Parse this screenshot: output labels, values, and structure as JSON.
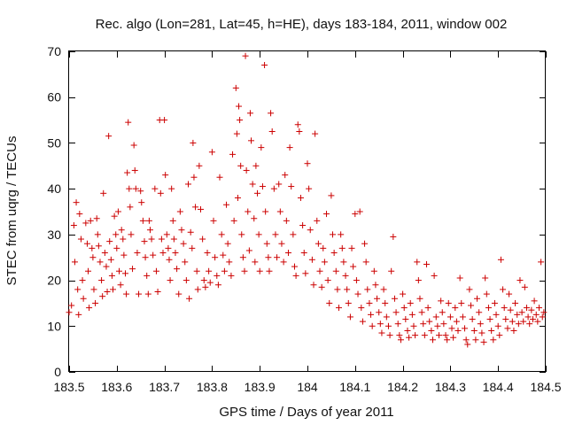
{
  "chart_data": {
    "type": "scatter",
    "title": "Rec. algo (Lon=281, Lat=45, h=HE), days 183-184, 2011, window 002",
    "xlabel": "GPS time / Days of year 2011",
    "ylabel": "STEC from uqrg / TECUs",
    "xlim": [
      183.5,
      184.5
    ],
    "ylim": [
      0,
      70
    ],
    "xticks": [
      183.5,
      183.6,
      183.7,
      183.8,
      183.9,
      184.0,
      184.1,
      184.2,
      184.3,
      184.4,
      184.5
    ],
    "xtick_labels": [
      "183.5",
      "183.6",
      "183.7",
      "183.8",
      "183.9",
      "184",
      "184.1",
      "184.2",
      "184.3",
      "184.4",
      "184.5"
    ],
    "yticks": [
      0,
      10,
      20,
      30,
      40,
      50,
      60,
      70
    ],
    "ytick_labels": [
      "0",
      "10",
      "20",
      "30",
      "40",
      "50",
      "60",
      "70"
    ],
    "grid": false,
    "marker": "+",
    "color": "#cc0000",
    "points": [
      [
        183.5,
        13.0
      ],
      [
        183.505,
        14.5
      ],
      [
        183.51,
        32.0
      ],
      [
        183.515,
        37.0
      ],
      [
        183.512,
        24.0
      ],
      [
        183.518,
        18.0
      ],
      [
        183.52,
        12.5
      ],
      [
        183.522,
        34.5
      ],
      [
        183.525,
        29.0
      ],
      [
        183.528,
        20.0
      ],
      [
        183.53,
        16.0
      ],
      [
        183.535,
        32.5
      ],
      [
        183.538,
        28.0
      ],
      [
        183.54,
        22.0
      ],
      [
        183.542,
        14.0
      ],
      [
        183.545,
        33.0
      ],
      [
        183.548,
        27.0
      ],
      [
        183.55,
        25.0
      ],
      [
        183.552,
        18.0
      ],
      [
        183.555,
        15.0
      ],
      [
        183.558,
        33.5
      ],
      [
        183.56,
        30.0
      ],
      [
        183.562,
        27.5
      ],
      [
        183.565,
        24.0
      ],
      [
        183.568,
        20.0
      ],
      [
        183.57,
        16.5
      ],
      [
        183.572,
        39.0
      ],
      [
        183.575,
        26.0
      ],
      [
        183.578,
        23.0
      ],
      [
        183.58,
        17.5
      ],
      [
        183.583,
        51.5
      ],
      [
        183.585,
        28.5
      ],
      [
        183.588,
        24.5
      ],
      [
        183.59,
        21.0
      ],
      [
        183.592,
        18.0
      ],
      [
        183.595,
        34.0
      ],
      [
        183.598,
        30.0
      ],
      [
        183.6,
        27.0
      ],
      [
        183.603,
        35.0
      ],
      [
        183.605,
        22.0
      ],
      [
        183.608,
        19.0
      ],
      [
        183.61,
        31.0
      ],
      [
        183.613,
        29.0
      ],
      [
        183.615,
        25.5
      ],
      [
        183.618,
        21.5
      ],
      [
        183.62,
        17.0
      ],
      [
        183.622,
        43.5
      ],
      [
        183.624,
        54.5
      ],
      [
        183.626,
        40.0
      ],
      [
        183.628,
        36.0
      ],
      [
        183.63,
        30.0
      ],
      [
        183.633,
        22.5
      ],
      [
        183.636,
        49.5
      ],
      [
        183.638,
        44.0
      ],
      [
        183.64,
        40.0
      ],
      [
        183.643,
        26.0
      ],
      [
        183.646,
        17.0
      ],
      [
        183.65,
        39.5
      ],
      [
        183.652,
        37.0
      ],
      [
        183.655,
        33.0
      ],
      [
        183.658,
        28.5
      ],
      [
        183.66,
        25.0
      ],
      [
        183.663,
        21.0
      ],
      [
        183.666,
        17.0
      ],
      [
        183.668,
        33.0
      ],
      [
        183.67,
        31.0
      ],
      [
        183.673,
        29.0
      ],
      [
        183.676,
        25.5
      ],
      [
        183.68,
        40.0
      ],
      [
        183.683,
        22.0
      ],
      [
        183.686,
        17.5
      ],
      [
        183.69,
        55.0
      ],
      [
        183.692,
        39.0
      ],
      [
        183.694,
        29.0
      ],
      [
        183.697,
        26.0
      ],
      [
        183.7,
        55.0
      ],
      [
        183.702,
        43.0
      ],
      [
        183.705,
        30.0
      ],
      [
        183.708,
        27.0
      ],
      [
        183.71,
        24.5
      ],
      [
        183.712,
        20.0
      ],
      [
        183.715,
        40.0
      ],
      [
        183.718,
        33.0
      ],
      [
        183.72,
        29.0
      ],
      [
        183.723,
        26.0
      ],
      [
        183.726,
        22.5
      ],
      [
        183.73,
        17.0
      ],
      [
        183.733,
        35.0
      ],
      [
        183.736,
        31.0
      ],
      [
        183.74,
        28.0
      ],
      [
        183.743,
        24.0
      ],
      [
        183.746,
        20.0
      ],
      [
        183.75,
        41.0
      ],
      [
        183.752,
        16.0
      ],
      [
        183.755,
        30.5
      ],
      [
        183.758,
        27.0
      ],
      [
        183.76,
        50.0
      ],
      [
        183.762,
        42.5
      ],
      [
        183.765,
        36.0
      ],
      [
        183.768,
        22.0
      ],
      [
        183.77,
        18.0
      ],
      [
        183.773,
        45.0
      ],
      [
        183.776,
        35.5
      ],
      [
        183.78,
        29.0
      ],
      [
        183.783,
        20.0
      ],
      [
        183.786,
        18.5
      ],
      [
        183.79,
        26.0
      ],
      [
        183.793,
        22.0
      ],
      [
        183.796,
        19.5
      ],
      [
        183.8,
        48.0
      ],
      [
        183.803,
        33.0
      ],
      [
        183.806,
        25.0
      ],
      [
        183.81,
        21.0
      ],
      [
        183.813,
        19.0
      ],
      [
        183.816,
        42.5
      ],
      [
        183.82,
        30.0
      ],
      [
        183.823,
        25.5
      ],
      [
        183.826,
        22.0
      ],
      [
        183.83,
        36.5
      ],
      [
        183.833,
        28.0
      ],
      [
        183.836,
        24.0
      ],
      [
        183.84,
        21.0
      ],
      [
        183.843,
        47.5
      ],
      [
        183.846,
        33.0
      ],
      [
        183.85,
        62.0
      ],
      [
        183.852,
        52.0
      ],
      [
        183.854,
        38.0
      ],
      [
        183.856,
        58.0
      ],
      [
        183.858,
        55.0
      ],
      [
        183.86,
        45.0
      ],
      [
        183.862,
        30.0
      ],
      [
        183.865,
        25.0
      ],
      [
        183.868,
        22.0
      ],
      [
        183.87,
        69.0
      ],
      [
        183.872,
        44.0
      ],
      [
        183.875,
        35.0
      ],
      [
        183.878,
        26.5
      ],
      [
        183.88,
        56.5
      ],
      [
        183.882,
        50.5
      ],
      [
        183.885,
        41.0
      ],
      [
        183.888,
        33.5
      ],
      [
        183.89,
        24.0
      ],
      [
        183.892,
        45.0
      ],
      [
        183.895,
        39.0
      ],
      [
        183.898,
        30.0
      ],
      [
        183.9,
        22.0
      ],
      [
        183.903,
        49.0
      ],
      [
        183.906,
        40.5
      ],
      [
        183.91,
        67.0
      ],
      [
        183.912,
        35.0
      ],
      [
        183.915,
        28.0
      ],
      [
        183.918,
        25.0
      ],
      [
        183.92,
        22.0
      ],
      [
        183.923,
        56.5
      ],
      [
        183.926,
        52.5
      ],
      [
        183.93,
        40.0
      ],
      [
        183.933,
        30.0
      ],
      [
        183.936,
        25.0
      ],
      [
        183.94,
        41.0
      ],
      [
        183.943,
        35.0
      ],
      [
        183.946,
        28.0
      ],
      [
        183.95,
        24.0
      ],
      [
        183.953,
        43.0
      ],
      [
        183.956,
        33.0
      ],
      [
        183.96,
        26.0
      ],
      [
        183.963,
        49.0
      ],
      [
        183.966,
        40.5
      ],
      [
        183.97,
        30.0
      ],
      [
        183.973,
        23.0
      ],
      [
        183.976,
        21.0
      ],
      [
        183.98,
        54.0
      ],
      [
        183.983,
        52.5
      ],
      [
        183.986,
        38.0
      ],
      [
        183.99,
        32.0
      ],
      [
        183.993,
        26.0
      ],
      [
        183.996,
        21.5
      ],
      [
        184.0,
        45.5
      ],
      [
        184.003,
        40.0
      ],
      [
        184.006,
        31.0
      ],
      [
        184.01,
        24.5
      ],
      [
        184.013,
        19.0
      ],
      [
        184.016,
        52.0
      ],
      [
        184.02,
        33.0
      ],
      [
        184.023,
        28.0
      ],
      [
        184.026,
        22.0
      ],
      [
        184.03,
        18.5
      ],
      [
        184.033,
        27.0
      ],
      [
        184.036,
        24.0
      ],
      [
        184.04,
        34.5
      ],
      [
        184.043,
        20.0
      ],
      [
        184.046,
        15.0
      ],
      [
        184.05,
        38.5
      ],
      [
        184.053,
        30.0
      ],
      [
        184.056,
        26.0
      ],
      [
        184.06,
        22.0
      ],
      [
        184.063,
        18.0
      ],
      [
        184.066,
        14.0
      ],
      [
        184.07,
        30.0
      ],
      [
        184.073,
        27.0
      ],
      [
        184.076,
        24.0
      ],
      [
        184.08,
        21.0
      ],
      [
        184.083,
        18.0
      ],
      [
        184.086,
        15.0
      ],
      [
        184.09,
        12.0
      ],
      [
        184.093,
        27.0
      ],
      [
        184.096,
        23.0
      ],
      [
        184.1,
        34.5
      ],
      [
        184.103,
        20.0
      ],
      [
        184.106,
        17.0
      ],
      [
        184.11,
        35.0
      ],
      [
        184.113,
        14.0
      ],
      [
        184.116,
        11.0
      ],
      [
        184.12,
        28.0
      ],
      [
        184.123,
        24.0
      ],
      [
        184.126,
        18.0
      ],
      [
        184.13,
        15.0
      ],
      [
        184.133,
        12.5
      ],
      [
        184.136,
        10.0
      ],
      [
        184.14,
        22.0
      ],
      [
        184.143,
        19.0
      ],
      [
        184.146,
        16.0
      ],
      [
        184.15,
        13.0
      ],
      [
        184.153,
        10.5
      ],
      [
        184.156,
        8.5
      ],
      [
        184.16,
        18.0
      ],
      [
        184.163,
        15.0
      ],
      [
        184.166,
        12.0
      ],
      [
        184.17,
        10.0
      ],
      [
        184.173,
        8.0
      ],
      [
        184.176,
        22.0
      ],
      [
        184.18,
        29.5
      ],
      [
        184.183,
        16.0
      ],
      [
        184.186,
        13.0
      ],
      [
        184.19,
        10.5
      ],
      [
        184.193,
        8.0
      ],
      [
        184.196,
        7.0
      ],
      [
        184.2,
        17.0
      ],
      [
        184.203,
        14.0
      ],
      [
        184.206,
        11.5
      ],
      [
        184.21,
        9.0
      ],
      [
        184.213,
        7.5
      ],
      [
        184.216,
        15.0
      ],
      [
        184.22,
        12.5
      ],
      [
        184.223,
        10.0
      ],
      [
        184.226,
        8.0
      ],
      [
        184.23,
        24.0
      ],
      [
        184.233,
        20.0
      ],
      [
        184.236,
        16.0
      ],
      [
        184.24,
        13.0
      ],
      [
        184.243,
        10.5
      ],
      [
        184.246,
        8.0
      ],
      [
        184.25,
        23.5
      ],
      [
        184.253,
        14.0
      ],
      [
        184.256,
        11.0
      ],
      [
        184.26,
        9.0
      ],
      [
        184.263,
        7.0
      ],
      [
        184.266,
        21.0
      ],
      [
        184.27,
        12.0
      ],
      [
        184.273,
        10.0
      ],
      [
        184.276,
        8.0
      ],
      [
        184.28,
        15.5
      ],
      [
        184.283,
        13.0
      ],
      [
        184.286,
        10.5
      ],
      [
        184.29,
        8.0
      ],
      [
        184.293,
        7.0
      ],
      [
        184.296,
        15.0
      ],
      [
        184.3,
        12.0
      ],
      [
        184.303,
        9.5
      ],
      [
        184.306,
        7.5
      ],
      [
        184.31,
        14.0
      ],
      [
        184.313,
        11.0
      ],
      [
        184.316,
        9.0
      ],
      [
        184.32,
        20.5
      ],
      [
        184.323,
        15.0
      ],
      [
        184.326,
        12.0
      ],
      [
        184.33,
        9.5
      ],
      [
        184.333,
        7.0
      ],
      [
        184.336,
        6.0
      ],
      [
        184.34,
        18.0
      ],
      [
        184.343,
        14.5
      ],
      [
        184.346,
        11.5
      ],
      [
        184.35,
        9.0
      ],
      [
        184.353,
        7.0
      ],
      [
        184.356,
        16.0
      ],
      [
        184.36,
        13.0
      ],
      [
        184.363,
        10.5
      ],
      [
        184.366,
        8.5
      ],
      [
        184.37,
        6.5
      ],
      [
        184.373,
        20.5
      ],
      [
        184.376,
        17.0
      ],
      [
        184.38,
        14.0
      ],
      [
        184.383,
        11.5
      ],
      [
        184.386,
        9.0
      ],
      [
        184.39,
        7.0
      ],
      [
        184.393,
        15.0
      ],
      [
        184.396,
        12.5
      ],
      [
        184.4,
        10.0
      ],
      [
        184.403,
        8.0
      ],
      [
        184.406,
        24.5
      ],
      [
        184.41,
        18.0
      ],
      [
        184.413,
        14.0
      ],
      [
        184.416,
        11.5
      ],
      [
        184.42,
        9.5
      ],
      [
        184.423,
        17.0
      ],
      [
        184.426,
        13.5
      ],
      [
        184.43,
        11.0
      ],
      [
        184.433,
        9.0
      ],
      [
        184.436,
        15.0
      ],
      [
        184.44,
        12.5
      ],
      [
        184.443,
        10.5
      ],
      [
        184.446,
        20.0
      ],
      [
        184.45,
        13.0
      ],
      [
        184.453,
        11.0
      ],
      [
        184.456,
        18.5
      ],
      [
        184.46,
        14.0
      ],
      [
        184.463,
        12.0
      ],
      [
        184.466,
        10.5
      ],
      [
        184.47,
        13.5
      ],
      [
        184.473,
        11.5
      ],
      [
        184.476,
        15.5
      ],
      [
        184.48,
        12.5
      ],
      [
        184.483,
        11.0
      ],
      [
        184.486,
        14.0
      ],
      [
        184.49,
        24.0
      ],
      [
        184.493,
        12.0
      ],
      [
        184.496,
        13.0
      ]
    ]
  }
}
